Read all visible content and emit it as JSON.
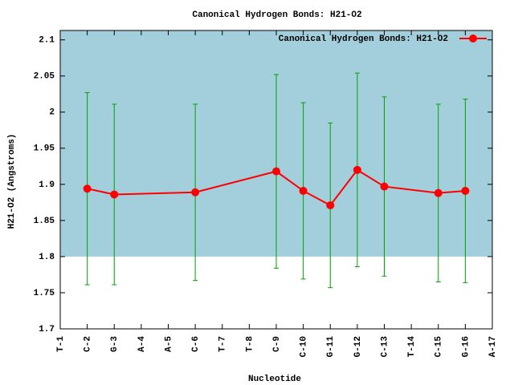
{
  "chart_data": {
    "type": "line",
    "title": "Canonical Hydrogen Bonds: H21-O2",
    "x_label": "Nucleotide",
    "y_label": "H21-O2 (Angstroms)",
    "x": [
      2,
      3,
      6,
      9,
      10,
      11,
      12,
      13,
      15,
      16
    ],
    "series": [
      {
        "name": "Canonical Hydrogen Bonds: H21-O2",
        "color": "#ff0000",
        "error_color": "#00a000",
        "values": [
          1.894,
          1.886,
          1.889,
          1.918,
          1.891,
          1.871,
          1.92,
          1.897,
          1.888,
          1.891
        ],
        "errors": [
          0.133,
          0.125,
          0.122,
          0.134,
          0.122,
          0.114,
          0.134,
          0.124,
          0.123,
          0.127
        ]
      }
    ],
    "xlim": [
      1,
      17
    ],
    "xticks": [
      {
        "value": 1,
        "label": "T-1"
      },
      {
        "value": 2,
        "label": "C-2"
      },
      {
        "value": 3,
        "label": "G-3"
      },
      {
        "value": 4,
        "label": "A-4"
      },
      {
        "value": 5,
        "label": "A-5"
      },
      {
        "value": 6,
        "label": "C-6"
      },
      {
        "value": 7,
        "label": "T-7"
      },
      {
        "value": 8,
        "label": "T-8"
      },
      {
        "value": 9,
        "label": "C-9"
      },
      {
        "value": 10,
        "label": "C-10"
      },
      {
        "value": 11,
        "label": "G-11"
      },
      {
        "value": 12,
        "label": "G-12"
      },
      {
        "value": 13,
        "label": "C-13"
      },
      {
        "value": 14,
        "label": "T-14"
      },
      {
        "value": 15,
        "label": "C-15"
      },
      {
        "value": 16,
        "label": "G-16"
      },
      {
        "value": 17,
        "label": "A-17"
      }
    ],
    "ylim": [
      1.7,
      2.113
    ],
    "yticks": [
      1.7,
      1.75,
      1.8,
      1.85,
      1.9,
      1.95,
      2,
      2.05,
      2.1
    ],
    "shaded_region": {
      "from": 1.8,
      "color": "#a3cfdc"
    },
    "legend": "top-right"
  }
}
